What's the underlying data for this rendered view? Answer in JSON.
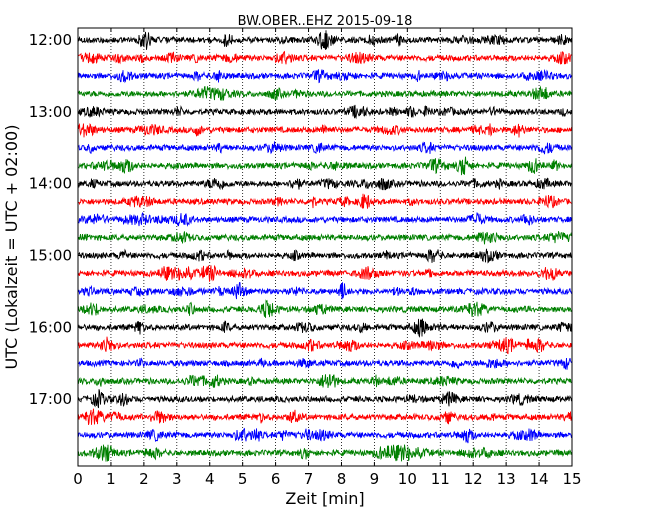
{
  "chart_data": {
    "type": "line",
    "title": "BW.OBER..EHZ 2015-09-18",
    "xlabel": "Zeit  [min]",
    "ylabel": "UTC (Lokalzeit = UTC + 02:00)",
    "xlim": [
      0,
      15
    ],
    "x_ticks": [
      "0",
      "1",
      "2",
      "3",
      "4",
      "5",
      "6",
      "7",
      "8",
      "9",
      "10",
      "11",
      "12",
      "13",
      "14",
      "15"
    ],
    "y_ticks": [
      "12:00",
      "13:00",
      "14:00",
      "15:00",
      "16:00",
      "17:00"
    ],
    "grid": "vertical dotted at each minute",
    "trace_interval_minutes": 15,
    "trace_colors": [
      "#000000",
      "#ff0000",
      "#0000ff",
      "#008000"
    ],
    "series": [
      {
        "start": "12:00",
        "color": "#000000"
      },
      {
        "start": "12:15",
        "color": "#ff0000"
      },
      {
        "start": "12:30",
        "color": "#0000ff"
      },
      {
        "start": "12:45",
        "color": "#008000"
      },
      {
        "start": "13:00",
        "color": "#000000"
      },
      {
        "start": "13:15",
        "color": "#ff0000"
      },
      {
        "start": "13:30",
        "color": "#0000ff"
      },
      {
        "start": "13:45",
        "color": "#008000"
      },
      {
        "start": "14:00",
        "color": "#000000"
      },
      {
        "start": "14:15",
        "color": "#ff0000"
      },
      {
        "start": "14:30",
        "color": "#0000ff"
      },
      {
        "start": "14:45",
        "color": "#008000"
      },
      {
        "start": "15:00",
        "color": "#000000"
      },
      {
        "start": "15:15",
        "color": "#ff0000"
      },
      {
        "start": "15:30",
        "color": "#0000ff"
      },
      {
        "start": "15:45",
        "color": "#008000"
      },
      {
        "start": "16:00",
        "color": "#000000"
      },
      {
        "start": "16:15",
        "color": "#ff0000"
      },
      {
        "start": "16:30",
        "color": "#0000ff"
      },
      {
        "start": "16:45",
        "color": "#008000"
      },
      {
        "start": "17:00",
        "color": "#000000"
      },
      {
        "start": "17:15",
        "color": "#ff0000"
      },
      {
        "start": "17:30",
        "color": "#0000ff"
      },
      {
        "start": "17:45",
        "color": "#008000"
      }
    ]
  }
}
